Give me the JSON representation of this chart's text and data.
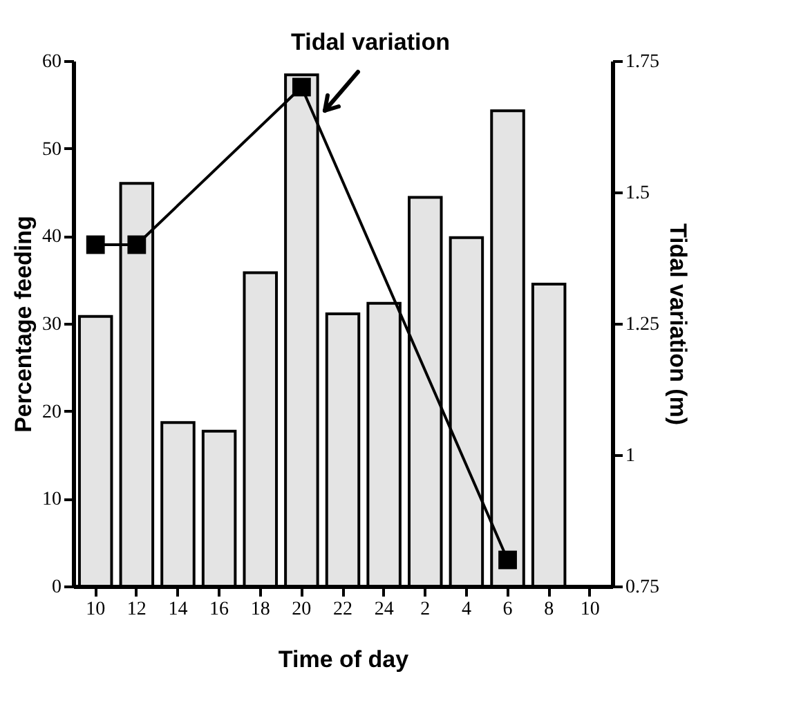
{
  "chart_data": {
    "type": "bar",
    "categories": [
      "10",
      "12",
      "14",
      "16",
      "18",
      "20",
      "22",
      "24",
      "2",
      "4",
      "6",
      "8",
      "10"
    ],
    "xlabel": "Time of  day",
    "ylabel": "Percentage feeding",
    "y2label": "Tidal variation (m)",
    "ylim": [
      0,
      60
    ],
    "yticks": [
      0,
      10,
      20,
      30,
      40,
      50,
      60
    ],
    "y2lim": [
      0.75,
      1.75
    ],
    "y2ticks": [
      0.75,
      1,
      1.25,
      1.5,
      1.75
    ],
    "series": [
      {
        "color": "#e4e4e4",
        "values": [
          30.8,
          46.0,
          18.7,
          17.7,
          35.8,
          58.4,
          31.1,
          32.3,
          44.4,
          39.8,
          54.3,
          34.5,
          null
        ]
      },
      {
        "type": "line",
        "axis": "y2",
        "color": "#000000",
        "marker": "square",
        "x": [
          "10",
          "12",
          "20",
          "6"
        ],
        "values": [
          1.4,
          1.4,
          1.7,
          0.8
        ]
      }
    ],
    "annotations": [
      "Tidal variation"
    ],
    "grid": false
  }
}
